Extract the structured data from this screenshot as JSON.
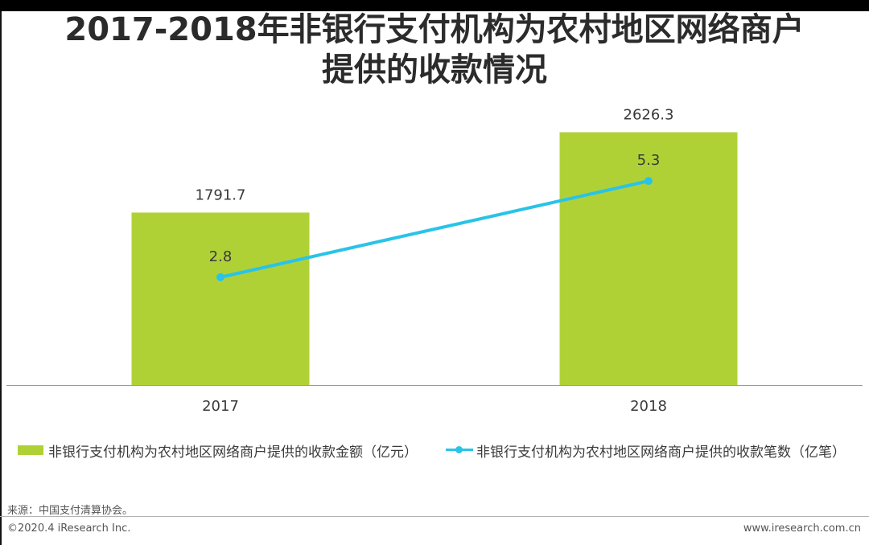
{
  "chart_data": {
    "type": "bar+line",
    "title_lines": [
      "2017-2018年非银行支付机构为农村地区网络商户",
      "提供的收款情况"
    ],
    "categories": [
      "2017",
      "2018"
    ],
    "series": [
      {
        "name": "非银行支付机构为农村地区网络商户提供的收款金额（亿元）",
        "kind": "bar",
        "values": [
          1791.7,
          2626.3
        ],
        "labels": [
          "1791.7",
          "2626.3"
        ]
      },
      {
        "name": "非银行支付机构为农村地区网络商户提供的收款笔数（亿笔）",
        "kind": "line",
        "values": [
          2.8,
          5.3
        ],
        "labels": [
          "2.8",
          "5.3"
        ]
      }
    ],
    "ylim_bar": [
      0,
      4000
    ],
    "ylim_line": [
      0,
      10
    ],
    "grid": false,
    "legend_position": "bottom"
  },
  "colors": {
    "bar": "#b0d136",
    "line": "#2ac3e8",
    "axis": "#9a9a9a",
    "text": "#3a3a3a"
  },
  "footer": {
    "source": "来源：中国支付清算协会。",
    "copyright": "©2020.4 iResearch Inc.",
    "website": "www.iresearch.com.cn"
  }
}
